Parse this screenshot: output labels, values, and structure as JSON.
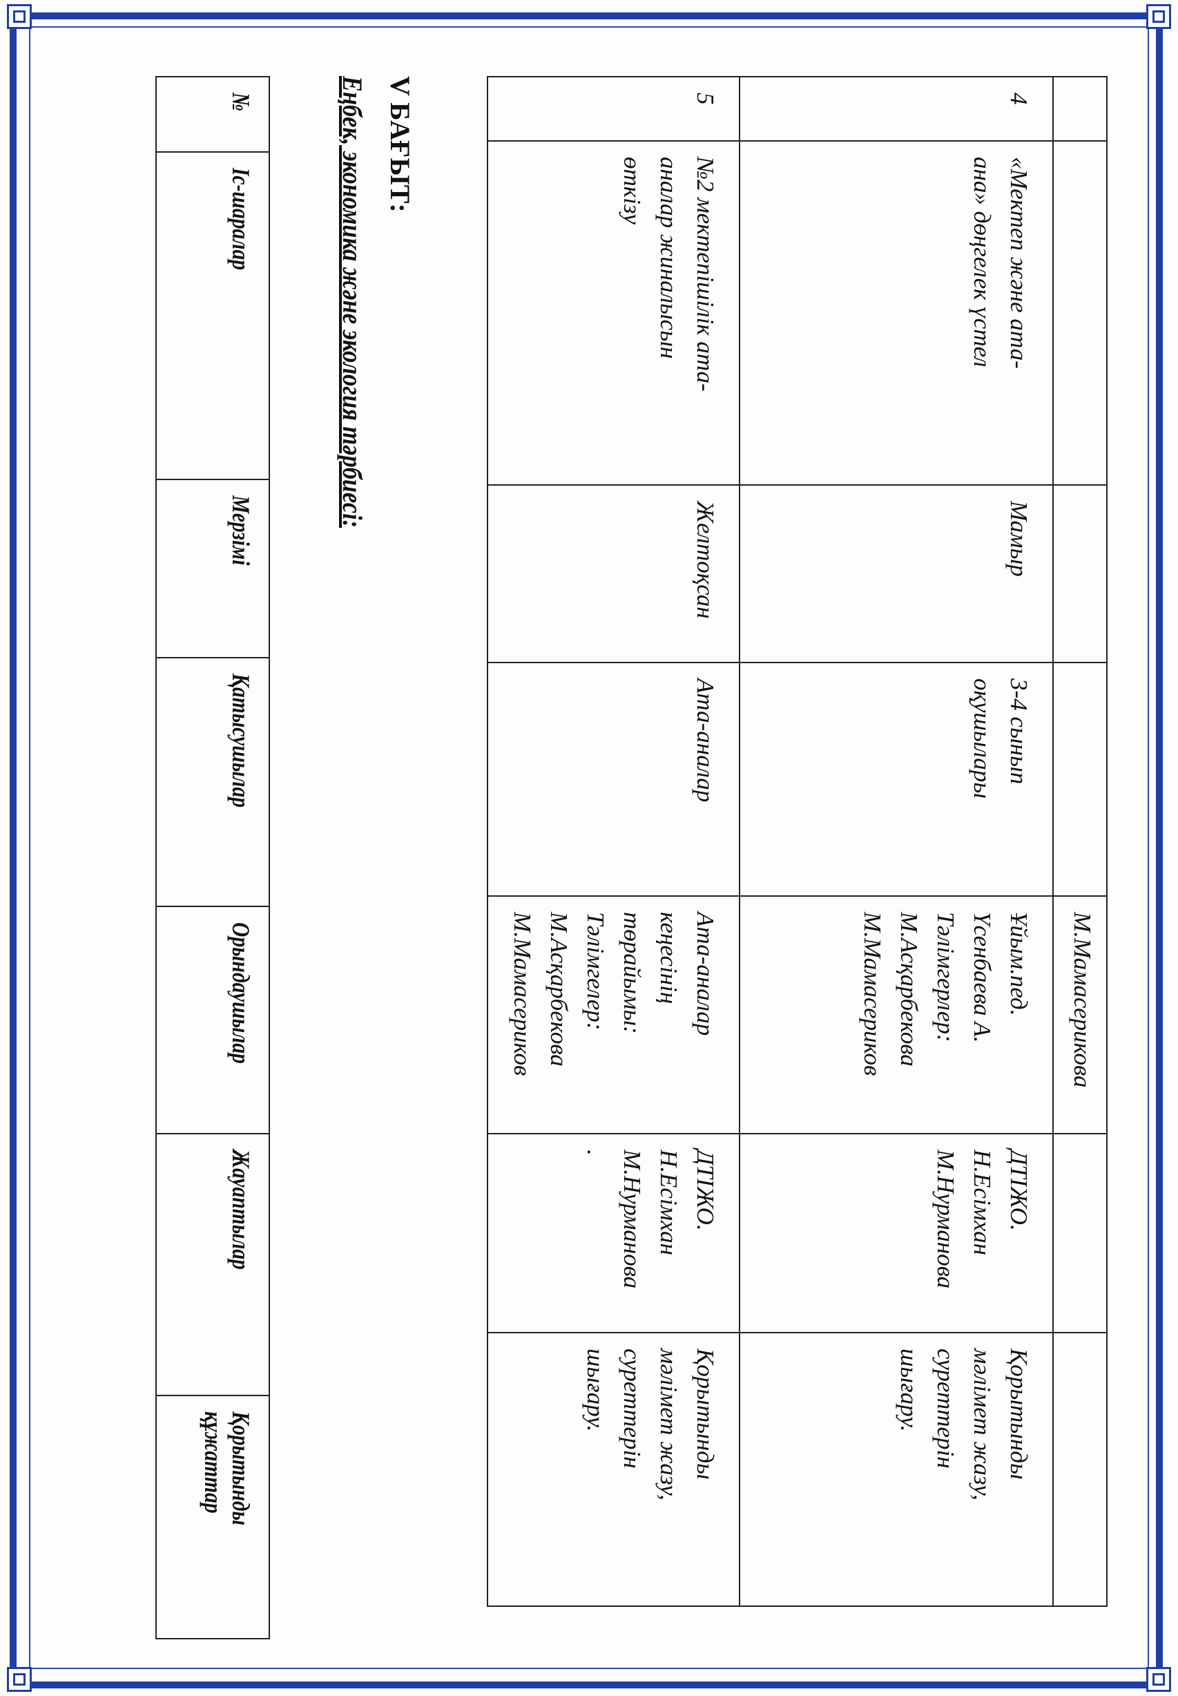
{
  "frame_color": "#1f3fa6",
  "table1": {
    "continuation_row": {
      "executors": "М.Мамасерикова"
    },
    "rows": [
      {
        "num": "4",
        "event": "«Мектеп және ата-\nана» дөңгелек үстел",
        "deadline": "Мамыр",
        "participants": "3-4 сынып\nоқушылары",
        "executors": "Ұйым.пед.\nҮсенбаева А.\nТәлімгерлер:\nМ.Асқарбекова\nМ.Мамасериков",
        "responsible": "ДТІЖО.\nН.Есімхан\nМ.Нурманова",
        "result": "Қорытынды\nмәлімет жазу,\nсуреттерін\nшығару."
      },
      {
        "num": "5",
        "event": "№2 мектепішілік ата-\nаналар жиналысын\nөткізу",
        "deadline": "Желтоқсан",
        "participants": "Ата-аналар",
        "executors": "Ата-аналар\nкеңесінің\nтөрайымы:\nТәлімгелер:\nМ.Асқарбекова\nМ.Мамасериков",
        "responsible": "ДТІЖО.\nН.Есімхан\nМ.Нурманова\n.",
        "result": "Қорытынды\nмәлімет жазу,\nсуреттерін\nшығару."
      }
    ]
  },
  "section": {
    "heading": "V БАҒЫТ:",
    "subtitle": "Еңбек, экономика және экология тәрбиесі:"
  },
  "table2": {
    "headers": [
      "№",
      "Іс-шаралар",
      "Мерзімі",
      "Қатысушылар",
      "Орындаушылар",
      "Жауаптылар",
      "Қорытынды\nқұжаттар"
    ]
  }
}
